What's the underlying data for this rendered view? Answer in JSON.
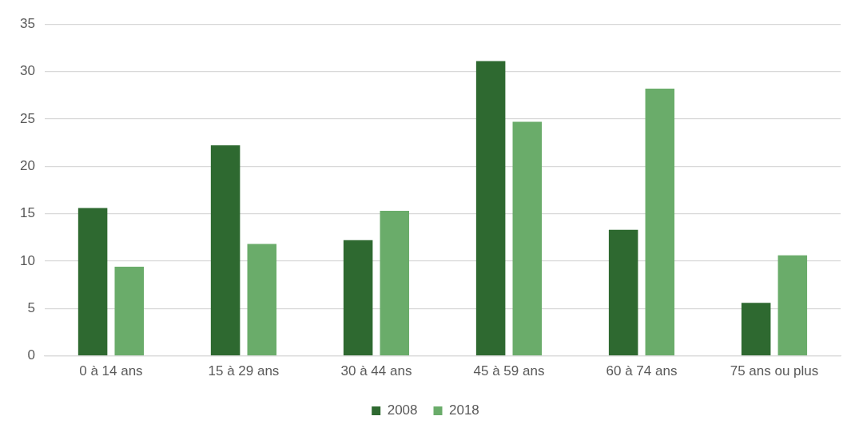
{
  "chart_data": {
    "type": "bar",
    "categories": [
      "0 à 14 ans",
      "15 à 29 ans",
      "30 à 44 ans",
      "45 à 59 ans",
      "60 à 74 ans",
      "75 ans ou plus"
    ],
    "series": [
      {
        "name": "2008",
        "color": "#2e6930",
        "values": [
          15.6,
          22.2,
          12.2,
          31.1,
          13.3,
          5.6
        ]
      },
      {
        "name": "2018",
        "color": "#6aac6a",
        "values": [
          9.4,
          11.8,
          15.3,
          24.7,
          28.2,
          10.6
        ]
      }
    ],
    "ylim": [
      0,
      35
    ],
    "yticks": [
      0,
      5,
      10,
      15,
      20,
      25,
      30,
      35
    ],
    "grid": "y",
    "legend": "bottom"
  }
}
